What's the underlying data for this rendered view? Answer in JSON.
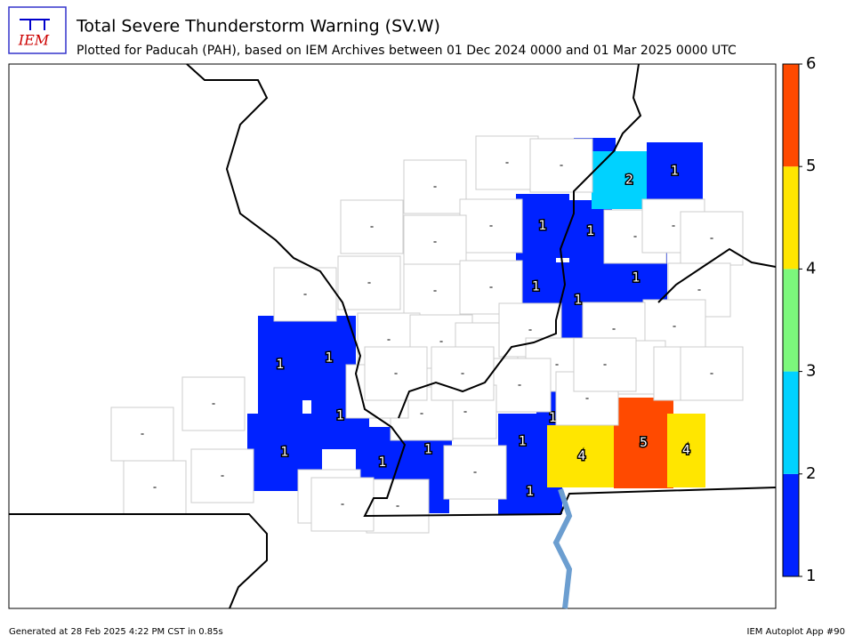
{
  "header": {
    "logo_text": "IEM",
    "title": "Total Severe Thunderstorm Warning (SV.W)",
    "subtitle": "Plotted for Paducah (PAH), based on IEM Archives  between 01 Dec 2024 0000 and 01 Mar 2025 0000 UTC"
  },
  "map": {
    "counties": {
      "values": [
        1,
        1,
        1,
        1,
        1,
        1,
        1,
        1,
        1,
        1,
        4,
        5,
        4,
        1,
        1,
        1,
        1,
        1,
        1,
        2,
        1,
        null,
        null,
        null,
        null,
        null,
        null,
        null,
        null,
        null,
        null,
        null,
        null,
        null,
        null,
        null,
        null,
        null,
        null,
        null,
        null,
        null,
        null,
        null,
        null,
        null,
        null,
        null,
        null,
        null,
        null,
        null,
        null,
        null,
        null,
        null,
        null,
        null,
        null,
        null,
        null
      ],
      "no_data_label": "-"
    },
    "colorbar": {
      "bins": [
        1,
        2,
        3,
        4,
        5,
        6
      ],
      "colors": [
        "#0022ff",
        "#00d2ff",
        "#7cf87c",
        "#ffe600",
        "#ff4a00"
      ]
    }
  },
  "footer": {
    "left": "Generated at 28 Feb 2025 4:22 PM CST in 0.85s",
    "right": "IEM Autoplot App #90"
  }
}
